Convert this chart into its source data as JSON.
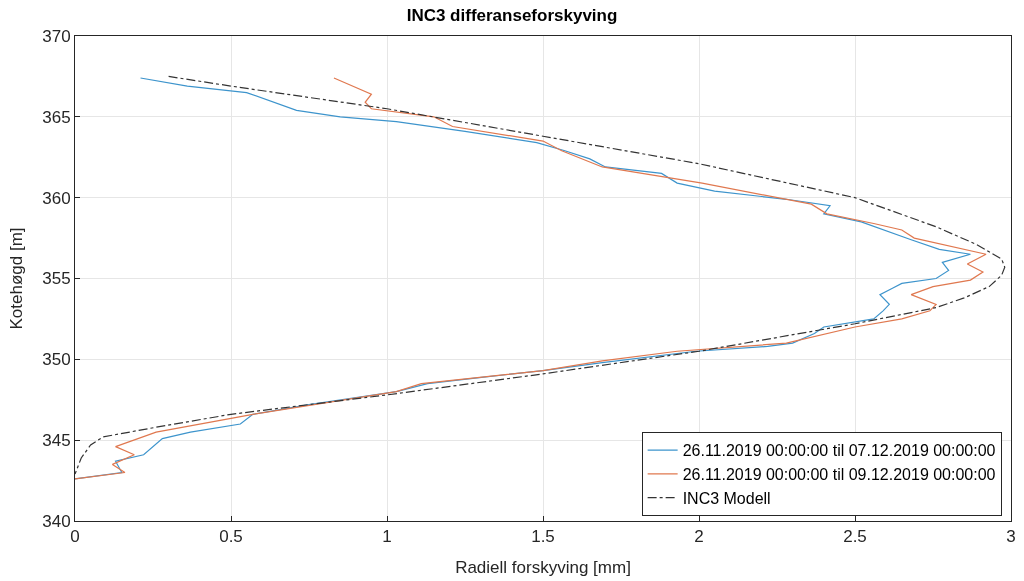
{
  "chart_data": {
    "type": "line",
    "title": "INC3 differanseforskyving",
    "xlabel": "Radiell forskyving [mm]",
    "ylabel": "Kotehøgd [m]",
    "xlim": [
      0,
      3
    ],
    "xticks": [
      0,
      0.5,
      1,
      1.5,
      2,
      2.5,
      3
    ],
    "ylim": [
      340,
      370
    ],
    "yticks": [
      340,
      345,
      350,
      355,
      360,
      365,
      370
    ],
    "grid": true,
    "legend": "bottom right",
    "marker": "none",
    "series": [
      {
        "name": "26.11.2019 00:00:00 til 07.12.2019 00:00:00",
        "color": "#3d94cc",
        "line_style": "solid",
        "x": [
          0.21,
          0.36,
          0.55,
          0.71,
          0.85,
          1.03,
          1.25,
          1.48,
          1.57,
          1.65,
          1.7,
          1.88,
          1.93,
          2.05,
          2.28,
          2.42,
          2.4,
          2.52,
          2.68,
          2.77,
          2.87,
          2.78,
          2.8,
          2.76,
          2.65,
          2.62,
          2.58,
          2.61,
          2.59,
          2.56,
          2.4,
          2.37,
          2.3,
          2.22,
          1.99,
          1.69,
          1.5,
          1.31,
          1.13,
          1.03,
          0.75,
          0.57,
          0.53,
          0.37,
          0.28,
          0.22,
          0.13,
          0.15,
          0.0
        ],
        "values": [
          367.4,
          366.9,
          366.5,
          365.4,
          365.0,
          364.7,
          364.1,
          363.4,
          362.9,
          362.4,
          361.9,
          361.5,
          360.9,
          360.4,
          359.9,
          359.5,
          359.0,
          358.5,
          357.4,
          356.8,
          356.5,
          356.0,
          355.5,
          355.0,
          354.7,
          354.4,
          354.0,
          353.4,
          353.0,
          352.5,
          352.0,
          351.6,
          351.0,
          350.8,
          350.5,
          349.8,
          349.3,
          348.9,
          348.5,
          348.0,
          347.2,
          346.6,
          346.0,
          345.5,
          345.1,
          344.1,
          343.7,
          343.0,
          342.6
        ]
      },
      {
        "name": "26.11.2019 00:00:00 til 09.12.2019 00:00:00",
        "color": "#e0784f",
        "line_style": "solid",
        "x": [
          0.83,
          0.95,
          0.93,
          0.95,
          1.15,
          1.21,
          1.5,
          1.56,
          1.69,
          2.01,
          2.36,
          2.41,
          2.56,
          2.65,
          2.69,
          2.92,
          2.86,
          2.91,
          2.87,
          2.75,
          2.68,
          2.76,
          2.74,
          2.65,
          2.5,
          2.28,
          1.93,
          1.69,
          1.5,
          1.11,
          1.03,
          0.57,
          0.26,
          0.13,
          0.19,
          0.12,
          0.16,
          0.0
        ],
        "values": [
          367.4,
          366.4,
          365.9,
          365.5,
          365.0,
          364.4,
          363.5,
          362.9,
          361.9,
          360.9,
          359.6,
          359.0,
          358.4,
          358.0,
          357.5,
          356.5,
          355.9,
          355.4,
          354.9,
          354.5,
          354.0,
          353.4,
          353.0,
          352.5,
          352.0,
          351.0,
          350.5,
          349.9,
          349.3,
          348.5,
          348.0,
          346.6,
          345.5,
          344.6,
          344.1,
          343.5,
          343.0,
          342.6
        ]
      },
      {
        "name": "INC3 Modell",
        "color": "#333333",
        "line_style": "dashdot",
        "x": [
          0.3,
          0.5,
          1.0,
          1.5,
          2.0,
          2.5,
          2.76,
          2.89,
          2.97,
          2.98,
          2.97,
          2.93,
          2.85,
          2.76,
          2.5,
          2.0,
          1.5,
          1.0,
          0.5,
          0.26,
          0.09,
          0.05,
          0.02,
          0.0
        ],
        "values": [
          367.5,
          366.9,
          365.5,
          363.8,
          362.1,
          360.0,
          358.2,
          357.1,
          356.2,
          355.7,
          355.2,
          354.5,
          353.8,
          353.2,
          352.2,
          350.5,
          349.1,
          347.8,
          346.6,
          345.8,
          345.2,
          344.7,
          343.9,
          342.9
        ]
      }
    ]
  }
}
